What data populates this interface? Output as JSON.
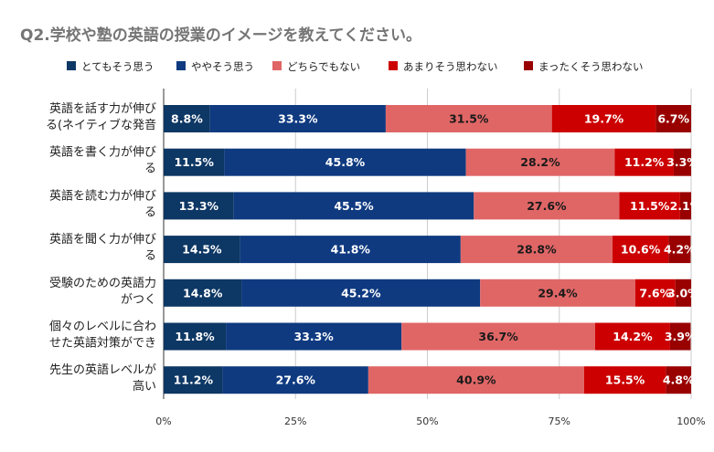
{
  "chart_data": {
    "type": "bar",
    "orientation": "horizontal",
    "stacked": "percent",
    "title": "Q2.学校や塾の英語の授業のイメージを教えてください。",
    "legend_position": "top",
    "grid": true,
    "xlim": [
      0,
      100
    ],
    "x_ticks": [
      "0%",
      "25%",
      "50%",
      "75%",
      "100%"
    ],
    "categories": [
      [
        "英語を話す力が伸び",
        "る(ネイティブな発音"
      ],
      [
        "英語を書く力が伸び",
        "る"
      ],
      [
        "英語を読む力が伸び",
        "る"
      ],
      [
        "英語を聞く力が伸び",
        "る"
      ],
      [
        "受験のための英語力",
        "がつく"
      ],
      [
        "個々のレベルに合わ",
        "せた英語対策ができ"
      ],
      [
        "先生の英語レベルが",
        "高い"
      ]
    ],
    "series": [
      {
        "name": "とてもそう思う",
        "color": "#0d3764",
        "label_color": "#ffffff",
        "values": [
          8.8,
          11.5,
          13.3,
          14.5,
          14.8,
          11.8,
          11.2
        ],
        "labels": [
          "8.8%",
          "11.5%",
          "13.3%",
          "14.5%",
          "14.8%",
          "11.8%",
          "11.2%"
        ]
      },
      {
        "name": "ややそう思う",
        "color": "#0f3a80",
        "label_color": "#ffffff",
        "values": [
          33.3,
          45.8,
          45.5,
          41.8,
          45.2,
          33.3,
          27.6
        ],
        "labels": [
          "33.3%",
          "45.8%",
          "45.5%",
          "41.8%",
          "45.2%",
          "33.3%",
          "27.6%"
        ]
      },
      {
        "name": "どちらでもない",
        "color": "#e06666",
        "label_color": "#1a1a1a",
        "values": [
          31.5,
          28.2,
          27.6,
          28.8,
          29.4,
          36.7,
          40.9
        ],
        "labels": [
          "31.5%",
          "28.2%",
          "27.6%",
          "28.8%",
          "29.4%",
          "36.7%",
          "40.9%"
        ]
      },
      {
        "name": "あまりそう思わない",
        "color": "#cc0000",
        "label_color": "#ffffff",
        "values": [
          19.7,
          11.2,
          11.5,
          10.6,
          7.6,
          14.2,
          15.5
        ],
        "labels": [
          "19.7%",
          "11.2%",
          "11.5%",
          "10.6%",
          "7.6%",
          "14.2%",
          "15.5%"
        ]
      },
      {
        "name": "まったくそう思わない",
        "color": "#990000",
        "label_color": "#ffffff",
        "values": [
          6.7,
          3.3,
          2.1,
          4.2,
          3.0,
          3.9,
          4.8
        ],
        "labels": [
          "6.7%",
          "3.3%",
          "2.1%",
          "4.2%",
          "3.0%",
          "3.9%",
          "4.8%"
        ]
      }
    ]
  }
}
